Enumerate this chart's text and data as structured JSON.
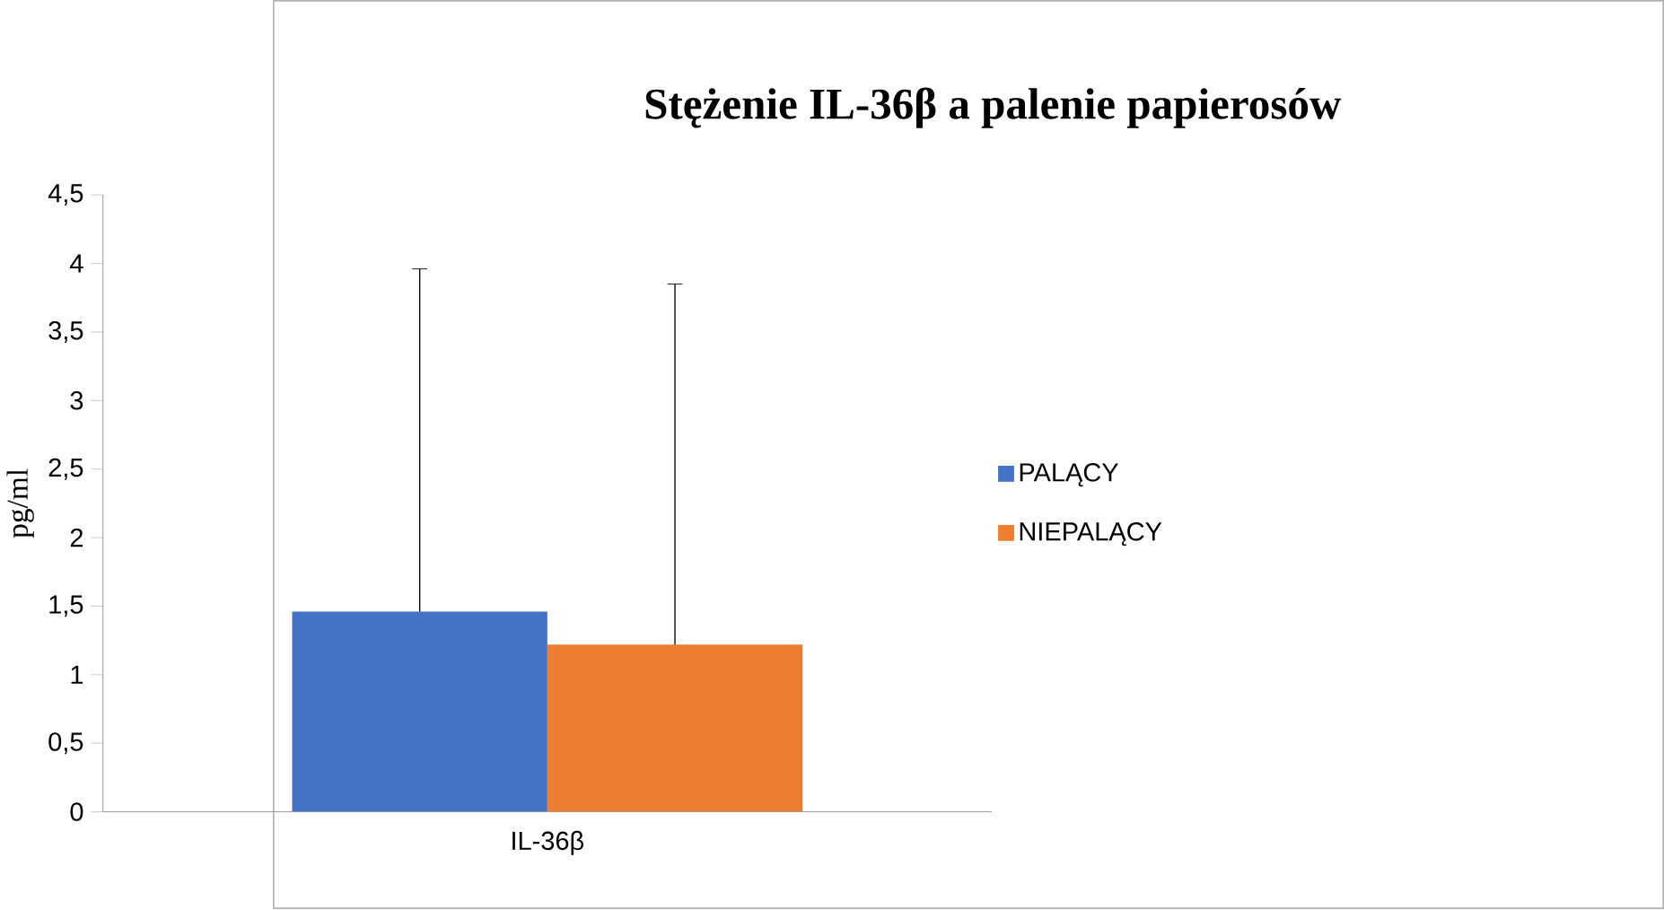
{
  "chart_data": {
    "type": "bar",
    "title": "Stężenie IL-36β a palenie papierosów",
    "ylabel": "pg/ml",
    "categories": [
      "IL-36β"
    ],
    "series": [
      {
        "name": "PALĄCY",
        "color": "#4472c4",
        "values": [
          1.46
        ],
        "errors": [
          [
            1.46,
            3.96
          ]
        ]
      },
      {
        "name": "NIEPALĄCY",
        "color": "#ed7d31",
        "values": [
          1.22
        ],
        "errors": [
          [
            1.22,
            3.85
          ]
        ]
      }
    ],
    "ylim": [
      0,
      4.5
    ],
    "yticks": [
      0,
      {
        "value": 0.5,
        "label": "0,5"
      },
      1,
      {
        "value": 1.5,
        "label": "1,5"
      },
      2,
      {
        "value": 2.5,
        "label": "2,5"
      },
      3,
      {
        "value": 3.5,
        "label": "3,5"
      },
      4,
      {
        "value": 4.5,
        "label": "4,5"
      }
    ],
    "legend": "right",
    "grid": false
  }
}
